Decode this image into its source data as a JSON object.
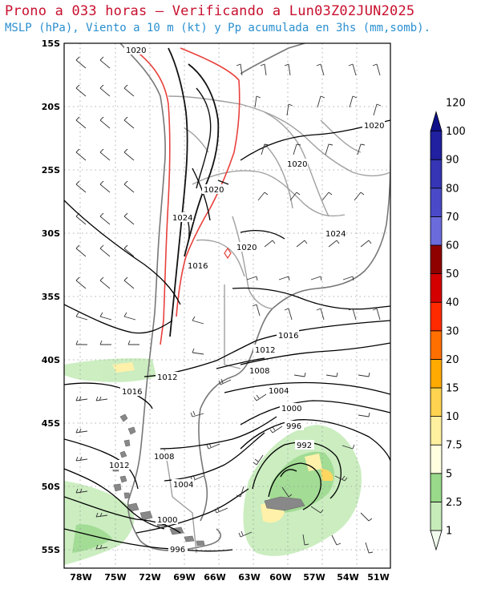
{
  "header": {
    "title": "Prono a 033 horas — Verificando a Lun03Z02JUN2025",
    "subtitle": "MSLP (hPa), Viento a 10 m (kt) y Pp acumulada en 3hs (mm,somb)."
  },
  "map": {
    "lat_labels": [
      "15S",
      "20S",
      "25S",
      "30S",
      "35S",
      "40S",
      "45S",
      "50S",
      "55S"
    ],
    "lon_labels": [
      "78W",
      "75W",
      "72W",
      "69W",
      "66W",
      "63W",
      "60W",
      "57W",
      "54W",
      "51W"
    ],
    "isobar_labels": [
      "1020",
      "1020",
      "1020",
      "1020",
      "1024",
      "1024",
      "1020",
      "1016",
      "1016",
      "1012",
      "1012",
      "1008",
      "1016",
      "1004",
      "1000",
      "996",
      "992",
      "1008",
      "1012",
      "1004",
      "1000",
      "996"
    ],
    "colors": {
      "isobar": "#000000",
      "coast": "#777777",
      "terrain_contour": "#e8413c",
      "land_border": "#999999",
      "grid": "#888888"
    }
  },
  "legend": {
    "title": "Pp acumulada en 3hs (mm)",
    "levels": [
      "1",
      "2.5",
      "5",
      "7.5",
      "10",
      "15",
      "20",
      "30",
      "40",
      "50",
      "60",
      "70",
      "80",
      "90",
      "100",
      "120"
    ],
    "colors": [
      "#f1fbee",
      "#c6ecba",
      "#98d98a",
      "#ffffe0",
      "#fff0a0",
      "#ffd34f",
      "#ffaa00",
      "#ff6f00",
      "#ff2a00",
      "#d40000",
      "#8f0000",
      "#6b6bdc",
      "#4a4ac8",
      "#3535b5",
      "#2020a0",
      "#10108a"
    ]
  }
}
